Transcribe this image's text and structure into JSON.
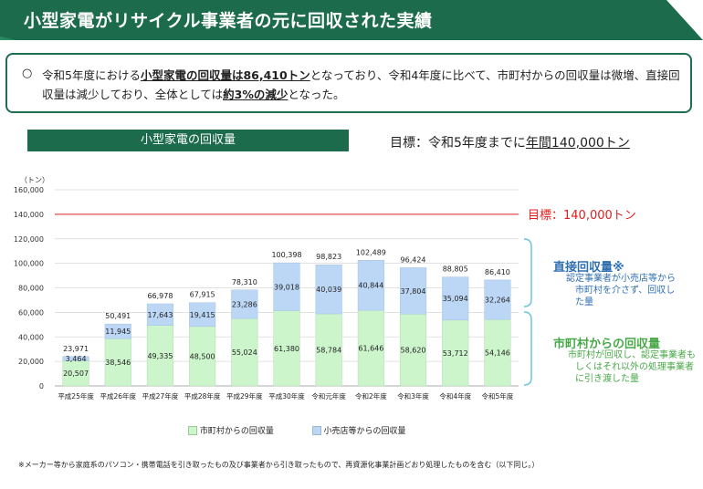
{
  "header": {
    "title": "小型家電がリサイクル事業者の元に回収された実績"
  },
  "summary": {
    "mark": "○",
    "pre": "令和5年度における",
    "bold1": "小型家電の回収量は86,410トン",
    "mid": "となっており、令和4年度に比べて、市町村からの回収量は微増、直接回収量は減少しており、全体としては",
    "bold2": "約3%の減少",
    "post": "となった。"
  },
  "chart_label": "小型家電の回収量",
  "target_note": {
    "prefix": "目標：令和5年度までに",
    "underlined": "年間140,000トン"
  },
  "chart_data": {
    "type": "bar",
    "stacked": true,
    "unit_label": "（トン）",
    "categories": [
      "平成25年度",
      "平成26年度",
      "平成27年度",
      "平成28年度",
      "平成29年度",
      "平成30年度",
      "令和元年度",
      "令和2年度",
      "令和3年度",
      "令和4年度",
      "令和5年度"
    ],
    "series": [
      {
        "name": "市町村からの回収量",
        "color": "#ccf5cc",
        "values": [
          20507,
          38546,
          49335,
          48500,
          55024,
          61380,
          58784,
          61646,
          58620,
          53712,
          54146
        ],
        "labels": [
          "20,507",
          "38,546",
          "49,335",
          "48,500",
          "55,024",
          "61,380",
          "58,784",
          "61,646",
          "58,620",
          "53,712",
          "54,146"
        ]
      },
      {
        "name": "小売店等からの回収量",
        "color": "#bcd7f5",
        "values": [
          3464,
          11945,
          17643,
          19415,
          23286,
          39018,
          40039,
          40844,
          37804,
          35094,
          32264
        ],
        "labels": [
          "3,464",
          "11,945",
          "17,643",
          "19,415",
          "23,286",
          "39,018",
          "40,039",
          "40,844",
          "37,804",
          "35,094",
          "32,264"
        ]
      }
    ],
    "totals": [
      "23,971",
      "50,491",
      "66,978",
      "67,915",
      "78,310",
      "100,398",
      "98,823",
      "102,489",
      "96,424",
      "88,805",
      "86,410"
    ],
    "y_ticks": [
      "0",
      "20,000",
      "40,000",
      "60,000",
      "80,000",
      "100,000",
      "120,000",
      "140,000",
      "160,000"
    ],
    "ylim": [
      0,
      160000
    ],
    "target": {
      "value": 140000,
      "label": "目標：140,000トン",
      "color": "#e02020"
    },
    "legend_position": "bottom"
  },
  "side_labels": {
    "direct_title": "直接回収量※",
    "direct_desc": [
      "認定事業者が小売店等から",
      "市町村を介さず、回収し",
      "た量"
    ],
    "muni_title": "市町村からの回収量",
    "muni_desc": [
      "市町村が回収し、認定事業者も",
      "しくはそれ以外の処理事業者",
      "に引き渡した量"
    ]
  },
  "colors": {
    "brand": "#1b6b4c",
    "side_title": "#2e6fb0",
    "muni_title": "#48a848",
    "bracket": "#6cc7d8"
  },
  "footnote": "※メーカー等から家庭系のパソコン・携帯電話を引き取ったもの及び事業者から引き取ったもので、再資源化事業計画どおり処理したものを含む（以下同じ。）"
}
